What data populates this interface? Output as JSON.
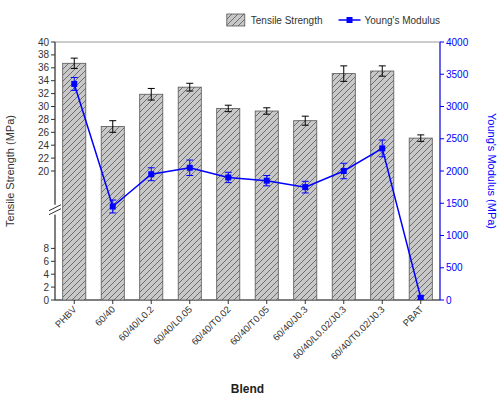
{
  "chart_data": {
    "type": "bar",
    "xlabel": "Blend",
    "ylabel": "Tensile Strength (MPa)",
    "y2label": "Young's Modulus (MPa)",
    "categories": [
      "PHBV",
      "60/40",
      "60/40/L0.2",
      "60/40/L0.05",
      "60/40/T0.02",
      "60/40/T0.05",
      "60/40/J0.3",
      "60/40/L0.02/J0.3",
      "60/40/T0.02/J0.3",
      "PBAT"
    ],
    "series": [
      {
        "name": "Tensile Strength",
        "type": "bar",
        "color": "#c8c8c8",
        "values": [
          36.7,
          26.9,
          31.9,
          33.0,
          29.7,
          29.3,
          27.8,
          35.1,
          35.5,
          25.1
        ],
        "errors": [
          0.8,
          0.9,
          0.9,
          0.6,
          0.5,
          0.5,
          0.7,
          1.2,
          0.8,
          0.5
        ]
      },
      {
        "name": "Young's Modulus",
        "type": "line",
        "axis": "y2",
        "color": "blue",
        "marker": "square",
        "values": [
          3350,
          1450,
          1950,
          2050,
          1900,
          1850,
          1750,
          2000,
          2350,
          35
        ],
        "errors": [
          100,
          100,
          100,
          120,
          80,
          80,
          90,
          120,
          130,
          30
        ]
      }
    ],
    "ylim": [
      0,
      40
    ],
    "yticks": [
      0,
      2,
      4,
      6,
      8,
      20,
      22,
      24,
      26,
      28,
      30,
      32,
      34,
      36,
      38,
      40
    ],
    "y2lim": [
      0,
      4000
    ],
    "y2ticks": [
      0,
      500,
      1000,
      1500,
      2000,
      2500,
      3000,
      3500,
      4000
    ],
    "legend": "top"
  }
}
